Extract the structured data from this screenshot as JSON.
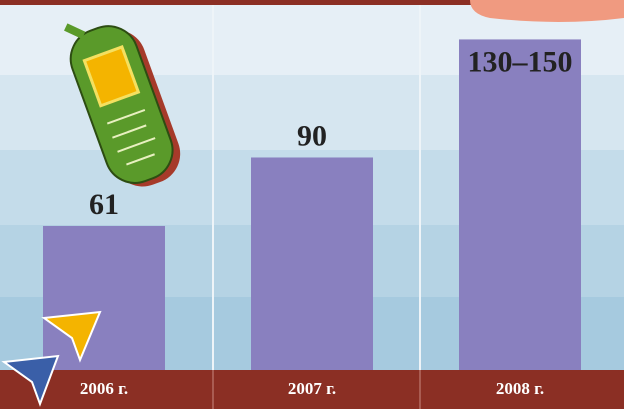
{
  "chart_data": {
    "type": "bar",
    "categories": [
      "2006 г.",
      "2007 г.",
      "2008 г."
    ],
    "values": [
      61,
      90,
      140
    ],
    "value_labels": [
      "61",
      "90",
      "130–150"
    ],
    "color": "#8980bf",
    "ylim": [
      0,
      155
    ]
  }
}
